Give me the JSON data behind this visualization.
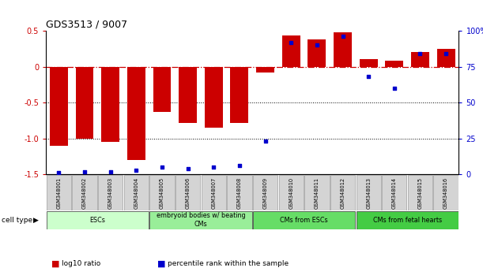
{
  "title": "GDS3513 / 9007",
  "samples": [
    "GSM348001",
    "GSM348002",
    "GSM348003",
    "GSM348004",
    "GSM348005",
    "GSM348006",
    "GSM348007",
    "GSM348008",
    "GSM348009",
    "GSM348010",
    "GSM348011",
    "GSM348012",
    "GSM348013",
    "GSM348014",
    "GSM348015",
    "GSM348016"
  ],
  "log10_ratio": [
    -1.1,
    -1.0,
    -1.05,
    -1.3,
    -0.63,
    -0.78,
    -0.85,
    -0.78,
    -0.08,
    0.43,
    0.38,
    0.48,
    0.1,
    0.08,
    0.2,
    0.25
  ],
  "percentile_rank": [
    1,
    2,
    2,
    3,
    5,
    4,
    5,
    6,
    23,
    92,
    90,
    96,
    68,
    60,
    84,
    84
  ],
  "ylim_left": [
    -1.5,
    0.5
  ],
  "ylim_right": [
    0,
    100
  ],
  "left_ticks": [
    -1.5,
    -1.0,
    -0.5,
    0,
    0.5
  ],
  "right_ticks": [
    0,
    25,
    50,
    75,
    100
  ],
  "right_tick_labels": [
    "0",
    "25",
    "50",
    "75",
    "100%"
  ],
  "bar_color": "#cc0000",
  "dot_color": "#0000cc",
  "cell_groups": [
    {
      "label": "ESCs",
      "start": 0,
      "end": 4,
      "color": "#ccffcc"
    },
    {
      "label": "embryoid bodies w/ beating\nCMs",
      "start": 4,
      "end": 8,
      "color": "#99ee99"
    },
    {
      "label": "CMs from ESCs",
      "start": 8,
      "end": 12,
      "color": "#66dd66"
    },
    {
      "label": "CMs from fetal hearts",
      "start": 12,
      "end": 16,
      "color": "#44cc44"
    }
  ],
  "legend_items": [
    {
      "label": "log10 ratio",
      "color": "#cc0000"
    },
    {
      "label": "percentile rank within the sample",
      "color": "#0000cc"
    }
  ],
  "cell_type_label": "cell type"
}
